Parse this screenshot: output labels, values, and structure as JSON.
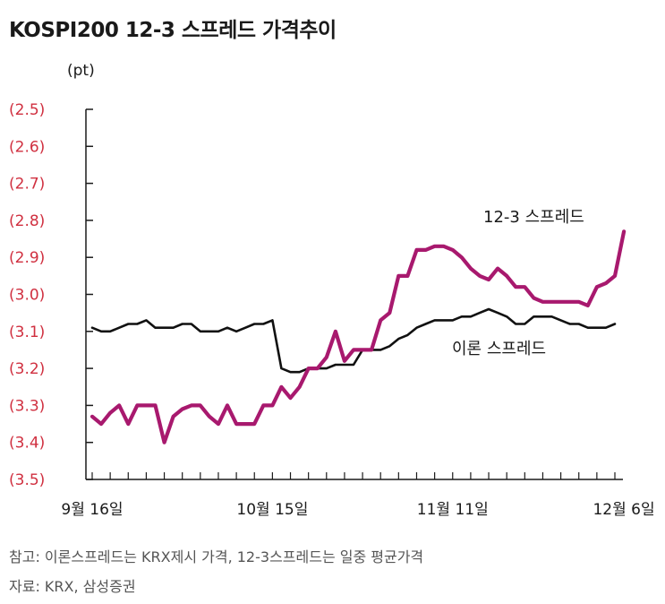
{
  "chart_data": {
    "type": "line",
    "title": "KOSPI200 12-3 스프레드 가격추이",
    "ylabel": "(pt)",
    "ylim": [
      -3.5,
      -2.5
    ],
    "yticks": [
      -2.5,
      -2.6,
      -2.7,
      -2.8,
      -2.9,
      -3.0,
      -3.1,
      -3.2,
      -3.3,
      -3.4,
      -3.5
    ],
    "ytick_labels": [
      "(2.5)",
      "(2.6)",
      "(2.7)",
      "(2.8)",
      "(2.9)",
      "(3.0)",
      "(3.1)",
      "(3.2)",
      "(3.3)",
      "(3.4)",
      "(3.5)"
    ],
    "xtick_labels": [
      {
        "index": 0,
        "label": "9월 16일"
      },
      {
        "index": 20,
        "label": "10월 15일"
      },
      {
        "index": 40,
        "label": "11월 11일"
      },
      {
        "index": 59,
        "label": "12월 6일"
      }
    ],
    "grid": false,
    "series": [
      {
        "name": "이론 스프레드",
        "color": "#111111",
        "values": [
          -3.09,
          -3.1,
          -3.1,
          -3.09,
          -3.08,
          -3.08,
          -3.07,
          -3.09,
          -3.09,
          -3.09,
          -3.08,
          -3.08,
          -3.1,
          -3.1,
          -3.1,
          -3.09,
          -3.1,
          -3.09,
          -3.08,
          -3.08,
          -3.07,
          -3.2,
          -3.21,
          -3.21,
          -3.2,
          -3.2,
          -3.2,
          -3.19,
          -3.19,
          -3.19,
          -3.15,
          -3.15,
          -3.15,
          -3.14,
          -3.12,
          -3.11,
          -3.09,
          -3.08,
          -3.07,
          -3.07,
          -3.07,
          -3.06,
          -3.06,
          -3.05,
          -3.04,
          -3.05,
          -3.06,
          -3.08,
          -3.08,
          -3.06,
          -3.06,
          -3.06,
          -3.07,
          -3.08,
          -3.08,
          -3.09,
          -3.09,
          -3.09,
          -3.08
        ]
      },
      {
        "name": "12-3 스프레드",
        "color": "#a8196e",
        "values": [
          -3.33,
          -3.35,
          -3.32,
          -3.3,
          -3.35,
          -3.3,
          -3.3,
          -3.3,
          -3.4,
          -3.33,
          -3.31,
          -3.3,
          -3.3,
          -3.33,
          -3.35,
          -3.3,
          -3.35,
          -3.35,
          -3.35,
          -3.3,
          -3.3,
          -3.25,
          -3.28,
          -3.25,
          -3.2,
          -3.2,
          -3.17,
          -3.1,
          -3.18,
          -3.15,
          -3.15,
          -3.15,
          -3.07,
          -3.05,
          -2.95,
          -2.95,
          -2.88,
          -2.88,
          -2.87,
          -2.87,
          -2.88,
          -2.9,
          -2.93,
          -2.95,
          -2.96,
          -2.93,
          -2.95,
          -2.98,
          -2.98,
          -3.01,
          -3.02,
          -3.02,
          -3.02,
          -3.02,
          -3.02,
          -3.03,
          -2.98,
          -2.97,
          -2.95,
          -2.83
        ]
      }
    ]
  },
  "note": "참고: 이론스프레드는 KRX제시 가격, 12-3스프레드는 일중 평균가격",
  "source": "자료: KRX, 삼성증권"
}
